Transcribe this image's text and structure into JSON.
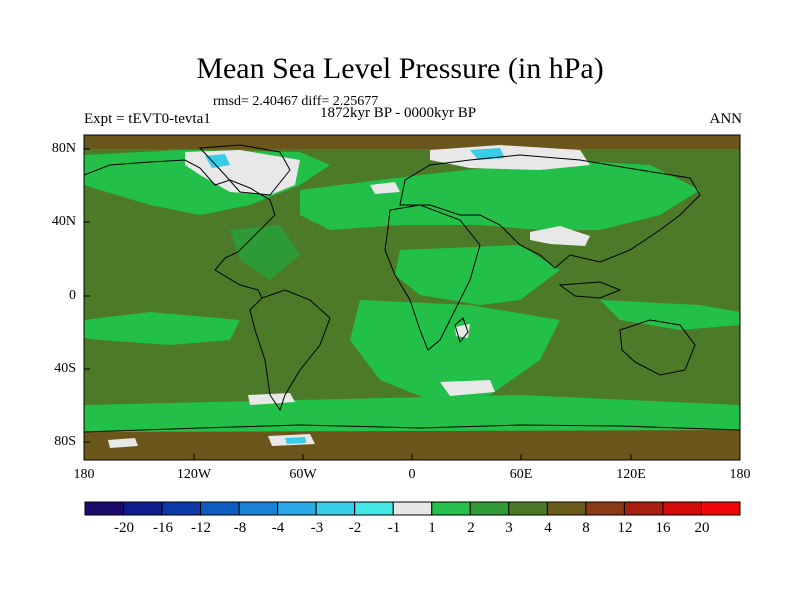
{
  "title": "Mean Sea Level Pressure (in hPa)",
  "stats": "rmsd= 2.40467  diff= 2.25677",
  "subtitle": "1872kyr BP - 0000kyr BP",
  "experiment": "Expt = tEVT0-tevta1",
  "season": "ANN",
  "lat_labels": [
    "80N",
    "40N",
    "0",
    "40S",
    "80S"
  ],
  "lon_labels": [
    "180",
    "120W",
    "60W",
    "0",
    "60E",
    "120E",
    "180"
  ],
  "colorbar": {
    "labels": [
      "-20",
      "-16",
      "-12",
      "-8",
      "-4",
      "-3",
      "-2",
      "-1",
      "1",
      "2",
      "3",
      "4",
      "8",
      "12",
      "16",
      "20"
    ],
    "colors": [
      "#1c0a6b",
      "#0d1e8c",
      "#0b3aa8",
      "#0d5cc0",
      "#1a82d6",
      "#2ba8e6",
      "#38cce8",
      "#44e8e6",
      "#e6e6e6",
      "#26c04a",
      "#2e9a38",
      "#4a7a28",
      "#6a5a1c",
      "#8a3a14",
      "#a81e10",
      "#d40a0a",
      "#f00808"
    ]
  },
  "map_colors": {
    "ocean_base": "#4c7a28",
    "green_2": "#22c048",
    "green_3": "#2e9a36",
    "brown_8": "#6a561a",
    "white_near_zero": "#e8e8e8",
    "cyan_neg": "#38cce8"
  }
}
